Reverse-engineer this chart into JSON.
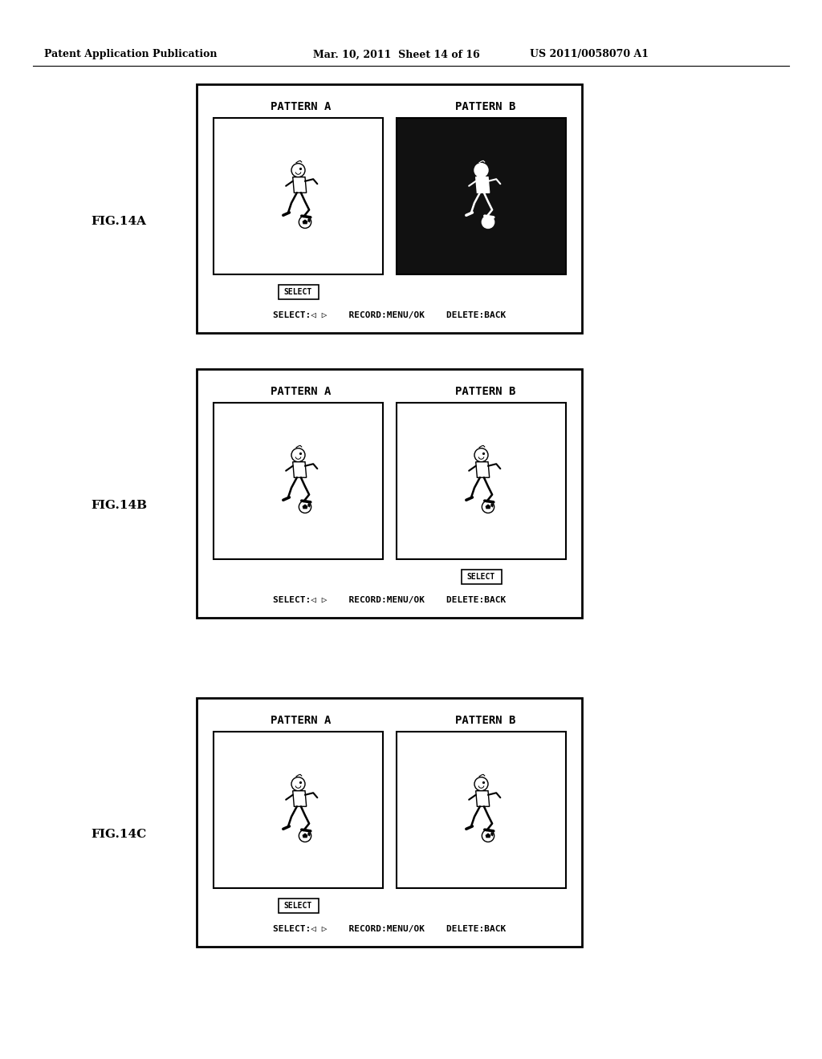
{
  "bg_color": "#ffffff",
  "header_left": "Patent Application Publication",
  "header_mid": "Mar. 10, 2011  Sheet 14 of 16",
  "header_right": "US 2011/0058070 A1",
  "fig_labels": [
    "FIG.14A",
    "FIG.14B",
    "FIG.14C"
  ],
  "panel_title_a": "PATTERN A",
  "panel_title_b": "PATTERN B",
  "select_label": "SELECT",
  "bottom_bar": "SELECT:◁ ▷    RECORD:MENU/OK    DELETE:BACK",
  "panels": [
    {
      "fig": "FIG.14A",
      "a_white": true,
      "b_black": true,
      "select_under_a": true
    },
    {
      "fig": "FIG.14B",
      "a_white": true,
      "b_black": false,
      "select_under_b": true
    },
    {
      "fig": "FIG.14C",
      "a_white": true,
      "b_black": false,
      "select_under_a": true
    }
  ]
}
